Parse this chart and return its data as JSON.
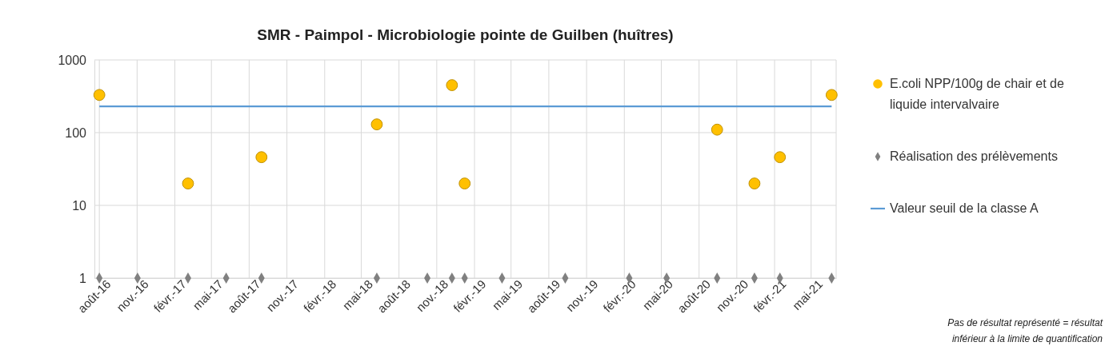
{
  "chart_data": {
    "type": "scatter",
    "title": "SMR - Paimpol - Microbiologie pointe de Guilben (huîtres)",
    "log": "y",
    "grid": true,
    "legend": "right",
    "xlim": [
      "2016-07-20",
      "2021-07-01"
    ],
    "xticks": [
      {
        "value": "2016-08-01",
        "label": "août-16"
      },
      {
        "value": "2016-11-01",
        "label": "nov.-16"
      },
      {
        "value": "2017-02-01",
        "label": "févr.-17"
      },
      {
        "value": "2017-05-01",
        "label": "mai-17"
      },
      {
        "value": "2017-08-01",
        "label": "août-17"
      },
      {
        "value": "2017-11-01",
        "label": "nov.-17"
      },
      {
        "value": "2018-02-01",
        "label": "févr.-18"
      },
      {
        "value": "2018-05-01",
        "label": "mai-18"
      },
      {
        "value": "2018-08-01",
        "label": "août-18"
      },
      {
        "value": "2018-11-01",
        "label": "nov.-18"
      },
      {
        "value": "2019-02-01",
        "label": "févr.-19"
      },
      {
        "value": "2019-05-01",
        "label": "mai-19"
      },
      {
        "value": "2019-08-01",
        "label": "août-19"
      },
      {
        "value": "2019-11-01",
        "label": "nov.-19"
      },
      {
        "value": "2020-02-01",
        "label": "févr.-20"
      },
      {
        "value": "2020-05-01",
        "label": "mai-20"
      },
      {
        "value": "2020-08-01",
        "label": "août-20"
      },
      {
        "value": "2020-11-01",
        "label": "nov.-20"
      },
      {
        "value": "2021-02-01",
        "label": "févr.-21"
      },
      {
        "value": "2021-05-01",
        "label": "mai-21"
      }
    ],
    "ylim": [
      1,
      1000
    ],
    "yticks": [
      1,
      10,
      100,
      1000
    ],
    "series": [
      {
        "name": "E.coli NPP/100g de chair et de liquide intervalvaire",
        "marker": "circle",
        "color": "#ffc000",
        "x": [
          "2016-08-01",
          "2017-03-05",
          "2017-08-31",
          "2018-06-08",
          "2018-12-08",
          "2019-01-08",
          "2020-09-14",
          "2020-12-14",
          "2021-02-14",
          "2021-06-20"
        ],
        "values": [
          330,
          20,
          46,
          130,
          450,
          20,
          110,
          20,
          46,
          330
        ]
      },
      {
        "name": "Réalisation des prélèvements",
        "marker": "diamond",
        "color": "#808080",
        "x": [
          "2016-08-01",
          "2016-11-02",
          "2017-03-05",
          "2017-06-06",
          "2017-08-31",
          "2018-06-08",
          "2018-10-09",
          "2018-12-08",
          "2019-01-08",
          "2019-04-09",
          "2019-09-10",
          "2020-02-13",
          "2020-05-14",
          "2020-09-14",
          "2020-12-14",
          "2021-02-14",
          "2021-06-20"
        ],
        "values": [
          1,
          1,
          1,
          1,
          1,
          1,
          1,
          1,
          1,
          1,
          1,
          1,
          1,
          1,
          1,
          1,
          1
        ]
      },
      {
        "name": "Valeur seuil de la classe A",
        "type": "line",
        "marker": "none",
        "line_style": "solid",
        "color": "#5b9bd5",
        "x": [
          "2016-08-01",
          "2021-06-20"
        ],
        "values": [
          230,
          230
        ]
      }
    ],
    "annotations": [
      "Pas de résultat représenté = résultat",
      "inférieur à la limite de quantification"
    ]
  }
}
